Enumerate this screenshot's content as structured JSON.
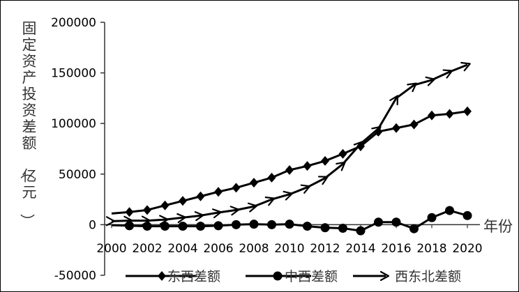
{
  "chart_data": {
    "type": "line",
    "ylabel": "固定资产投资差额（亿元）",
    "xlabel": "年份",
    "xlim": [
      2000,
      2020
    ],
    "ylim": [
      -50000,
      200000
    ],
    "x_ticks": [
      "2000",
      "2002",
      "2004",
      "2006",
      "2008",
      "2010",
      "2012",
      "2014",
      "2016",
      "2018",
      "2020"
    ],
    "y_ticks": [
      "200000",
      "150000",
      "100000",
      "50000",
      "0",
      "-50000"
    ],
    "y_tick_values": [
      200000,
      150000,
      100000,
      50000,
      0,
      -50000
    ],
    "x_tick_values": [
      2000,
      2002,
      2004,
      2006,
      2008,
      2010,
      2012,
      2014,
      2016,
      2018,
      2020
    ],
    "grid": false,
    "legend_position": "bottom",
    "series": [
      {
        "name": "东西差额",
        "marker": "diamond",
        "color": "#000000",
        "x": [
          2000,
          2001,
          2002,
          2003,
          2004,
          2005,
          2006,
          2007,
          2008,
          2009,
          2010,
          2011,
          2012,
          2013,
          2014,
          2015,
          2016,
          2017,
          2018,
          2019,
          2020
        ],
        "values": [
          11000,
          12500,
          14500,
          19000,
          23500,
          28000,
          32500,
          36500,
          41500,
          46500,
          54000,
          58000,
          63000,
          70000,
          77500,
          92000,
          95500,
          99000,
          108000,
          109500,
          112000
        ]
      },
      {
        "name": "中西差额",
        "marker": "circle",
        "color": "#000000",
        "x": [
          2000,
          2001,
          2002,
          2003,
          2004,
          2005,
          2006,
          2007,
          2008,
          2009,
          2010,
          2011,
          2012,
          2013,
          2014,
          2015,
          2016,
          2017,
          2018,
          2019,
          2020
        ],
        "values": [
          -500,
          -1000,
          -1500,
          -1500,
          -1500,
          -1500,
          -1000,
          0,
          500,
          0,
          500,
          -1500,
          -3000,
          -3500,
          -6000,
          2500,
          2500,
          -4000,
          7000,
          14000,
          9000
        ]
      },
      {
        "name": "西东北差额",
        "marker": "arrow",
        "color": "#000000",
        "x": [
          2000,
          2001,
          2002,
          2003,
          2004,
          2005,
          2006,
          2007,
          2008,
          2009,
          2010,
          2011,
          2012,
          2013,
          2014,
          2015,
          2016,
          2017,
          2018,
          2019,
          2020
        ],
        "values": [
          3500,
          4000,
          4000,
          5000,
          7000,
          9000,
          12000,
          14500,
          18000,
          25000,
          30000,
          37000,
          46000,
          60000,
          80000,
          95000,
          125000,
          138000,
          143000,
          151000,
          158000
        ]
      }
    ]
  }
}
